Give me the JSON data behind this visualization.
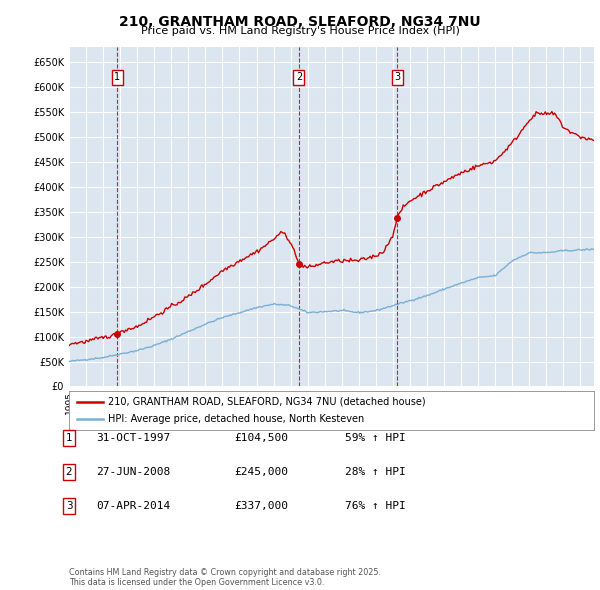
{
  "title": "210, GRANTHAM ROAD, SLEAFORD, NG34 7NU",
  "subtitle": "Price paid vs. HM Land Registry's House Price Index (HPI)",
  "background_color": "#dce6f1",
  "plot_bg_color": "#dce6f1",
  "grid_color": "#ffffff",
  "ylim": [
    0,
    680000
  ],
  "yticks": [
    0,
    50000,
    100000,
    150000,
    200000,
    250000,
    300000,
    350000,
    400000,
    450000,
    500000,
    550000,
    600000,
    650000
  ],
  "ytick_labels": [
    "£0",
    "£50K",
    "£100K",
    "£150K",
    "£200K",
    "£250K",
    "£300K",
    "£350K",
    "£400K",
    "£450K",
    "£500K",
    "£550K",
    "£600K",
    "£650K"
  ],
  "red_line_color": "#cc0000",
  "blue_line_color": "#7bafd4",
  "vline_color": "#cc0000",
  "marker_box_color": "#cc0000",
  "purchases": [
    {
      "label": "1",
      "date_num": 1997.83,
      "price": 104500
    },
    {
      "label": "2",
      "date_num": 2008.49,
      "price": 245000
    },
    {
      "label": "3",
      "date_num": 2014.27,
      "price": 337000
    }
  ],
  "legend_label_red": "210, GRANTHAM ROAD, SLEAFORD, NG34 7NU (detached house)",
  "legend_label_blue": "HPI: Average price, detached house, North Kesteven",
  "table_entries": [
    {
      "num": "1",
      "date": "31-OCT-1997",
      "price": "£104,500",
      "hpi": "59% ↑ HPI"
    },
    {
      "num": "2",
      "date": "27-JUN-2008",
      "price": "£245,000",
      "hpi": "28% ↑ HPI"
    },
    {
      "num": "3",
      "date": "07-APR-2014",
      "price": "£337,000",
      "hpi": "76% ↑ HPI"
    }
  ],
  "footer": "Contains HM Land Registry data © Crown copyright and database right 2025.\nThis data is licensed under the Open Government Licence v3.0.",
  "xmin": 1995.0,
  "xmax": 2025.8
}
